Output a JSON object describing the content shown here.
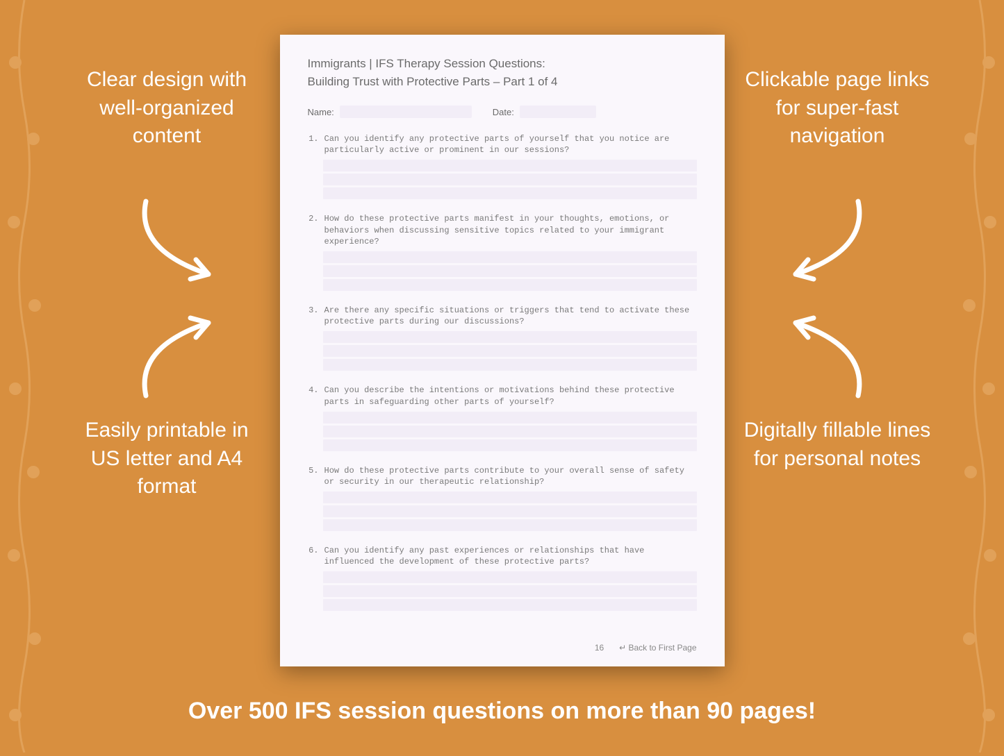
{
  "colors": {
    "background": "#d88f3f",
    "page_bg": "#faf7fc",
    "line_fill": "#f2edf7",
    "text_white": "#ffffff",
    "text_gray": "#6a6a6a",
    "text_light_gray": "#888888"
  },
  "typography": {
    "callout_fontsize": 30,
    "bottom_fontsize": 34,
    "page_title_fontsize": 17,
    "question_fontsize": 12,
    "question_font": "monospace"
  },
  "callouts": {
    "top_left": "Clear design with well-organized content",
    "top_right": "Clickable page links for super-fast navigation",
    "bottom_left": "Easily printable in US letter and A4 format",
    "bottom_right": "Digitally fillable lines for personal notes"
  },
  "bottom_banner": "Over 500 IFS session questions on more than 90 pages!",
  "page": {
    "title": "Immigrants | IFS Therapy Session Questions:",
    "subtitle": "Building Trust with Protective Parts  – Part 1 of 4",
    "name_label": "Name:",
    "date_label": "Date:",
    "questions": [
      {
        "num": "1.",
        "text": "Can you identify any protective parts of yourself that you notice are particularly active or prominent in our sessions?"
      },
      {
        "num": "2.",
        "text": "How do these protective parts manifest in your thoughts, emotions, or behaviors when discussing sensitive topics related to your immigrant experience?"
      },
      {
        "num": "3.",
        "text": "Are there any specific situations or triggers that tend to activate these protective parts during our discussions?"
      },
      {
        "num": "4.",
        "text": "Can you describe the intentions or motivations behind these protective parts in safeguarding other parts of yourself?"
      },
      {
        "num": "5.",
        "text": "How do these protective parts contribute to your overall sense of safety or security in our therapeutic relationship?"
      },
      {
        "num": "6.",
        "text": "Can you identify any past experiences or relationships that have influenced the development of these protective parts?"
      }
    ],
    "answer_lines_per_question": 3,
    "page_number": "16",
    "back_link": "↵ Back to First Page"
  }
}
